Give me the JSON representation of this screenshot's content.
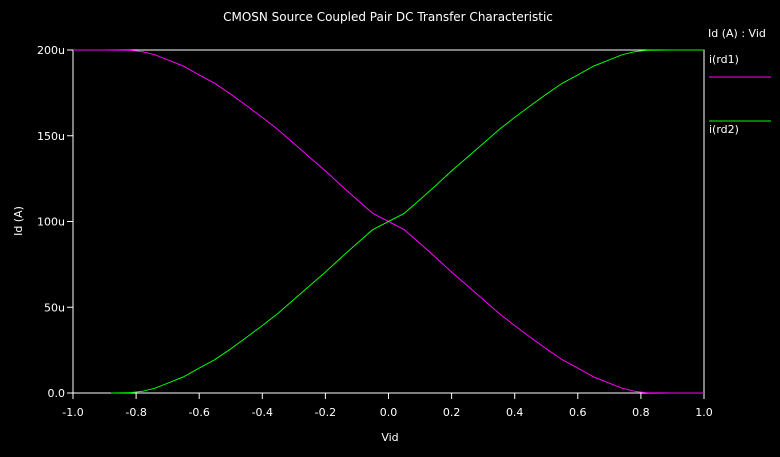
{
  "colors": {
    "background": "#000000",
    "frame": "#ffffff",
    "text": "#ffffff",
    "series_rd1": "#ff00ff",
    "series_rd2": "#00ff00"
  },
  "chart_data": {
    "type": "line",
    "title": "CMOSN Source Coupled Pair DC Transfer Characteristic",
    "xlabel": "Vid",
    "ylabel": "Id (A)",
    "xlim": [
      -1.0,
      1.0
    ],
    "ylim": [
      0,
      200
    ],
    "grid": false,
    "legend_position": "right",
    "legend_title": "Id (A) : Vid",
    "x_ticks": [
      -1.0,
      -0.8,
      -0.6,
      -0.4,
      -0.2,
      0.0,
      0.2,
      0.4,
      0.6,
      0.8,
      1.0
    ],
    "x_tick_labels": [
      "-1.0",
      "-0.8",
      "-0.6",
      "-0.4",
      "-0.2",
      "0.0",
      "0.2",
      "0.4",
      "0.6",
      "0.8",
      "1.0"
    ],
    "y_ticks": [
      0,
      50,
      100,
      150,
      200
    ],
    "y_tick_labels": [
      "0.0",
      "50u",
      "100u",
      "150u",
      "200u"
    ],
    "series": [
      {
        "name": "i(rd1)",
        "color": "#ff00ff",
        "x": [
          -1.0,
          -0.9,
          -0.82,
          -0.78,
          -0.74,
          -0.7,
          -0.65,
          -0.6,
          -0.55,
          -0.5,
          -0.45,
          -0.4,
          -0.35,
          -0.3,
          -0.25,
          -0.2,
          -0.15,
          -0.1,
          -0.05,
          0.0,
          0.05,
          0.1,
          0.15,
          0.2,
          0.25,
          0.3,
          0.35,
          0.4,
          0.45,
          0.5,
          0.55,
          0.6,
          0.65,
          0.7,
          0.74,
          0.78,
          0.82,
          0.9,
          1.0
        ],
        "y": [
          200,
          200,
          199.8,
          199.0,
          197.2,
          194.3,
          190.6,
          185.5,
          180.5,
          174.2,
          167.6,
          160.7,
          153.5,
          145.5,
          137.5,
          129.5,
          121.0,
          112.8,
          104.8,
          100,
          95.2,
          87.2,
          79.0,
          70.5,
          62.5,
          54.5,
          46.5,
          39.3,
          32.4,
          25.8,
          19.5,
          14.5,
          9.4,
          5.7,
          2.8,
          1.0,
          0.2,
          0,
          0
        ]
      },
      {
        "name": "i(rd2)",
        "color": "#00ff00",
        "x": [
          -0.88,
          -0.82,
          -0.78,
          -0.74,
          -0.7,
          -0.65,
          -0.6,
          -0.55,
          -0.5,
          -0.45,
          -0.4,
          -0.35,
          -0.3,
          -0.25,
          -0.2,
          -0.15,
          -0.1,
          -0.05,
          0.0,
          0.05,
          0.1,
          0.15,
          0.2,
          0.25,
          0.3,
          0.35,
          0.4,
          0.45,
          0.5,
          0.55,
          0.6,
          0.65,
          0.7,
          0.74,
          0.78,
          0.82,
          0.9,
          1.0
        ],
        "y": [
          0,
          0.2,
          1.0,
          2.8,
          5.7,
          9.4,
          14.5,
          19.5,
          25.8,
          32.4,
          39.3,
          46.5,
          54.5,
          62.5,
          70.5,
          79.0,
          87.2,
          95.2,
          100,
          104.8,
          112.8,
          121.0,
          129.5,
          137.5,
          145.5,
          153.5,
          160.7,
          167.6,
          174.2,
          180.5,
          185.5,
          190.6,
          194.3,
          197.2,
          199.0,
          199.8,
          200,
          200
        ]
      }
    ]
  }
}
